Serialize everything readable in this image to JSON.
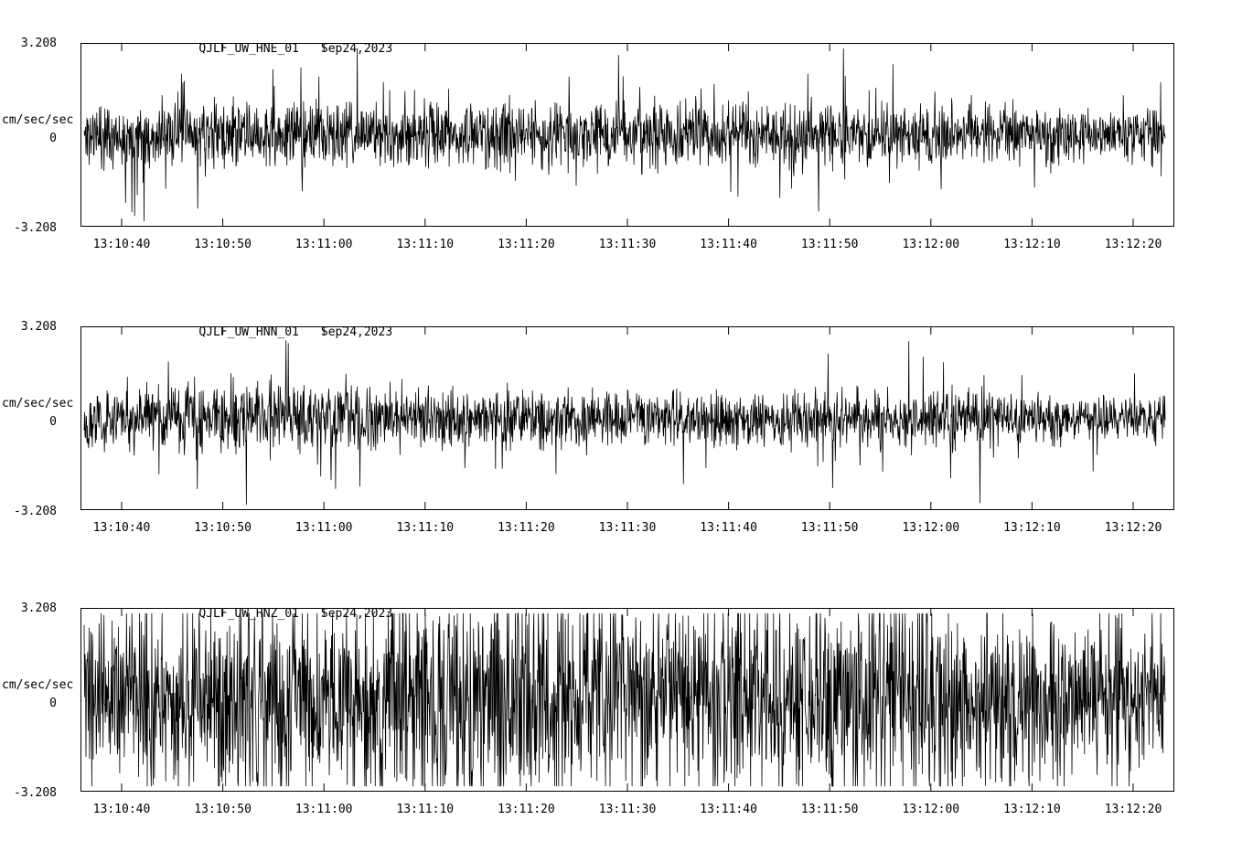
{
  "chart_data": [
    {
      "type": "line",
      "title": "QJLF_UW_HNE_01",
      "date": "Sep24,2023",
      "ylabel": "cm/sec/sec",
      "ymax_label": "3.208",
      "yzero_label": "0",
      "ymin_label": "-3.208",
      "ylim": [
        -3.208,
        3.208
      ],
      "xlabel": "",
      "x_ticks": [
        "13:10:40",
        "13:10:50",
        "13:11:00",
        "13:11:10",
        "13:11:20",
        "13:11:30",
        "13:11:40",
        "13:11:50",
        "13:12:00",
        "13:12:10",
        "13:12:20"
      ],
      "description": "continuous ground-acceleration noise trace, roughly stationary amplitude about +/-1.0 cm/sec/sec peaks around zero",
      "layout": {
        "first_tick_x": 45,
        "tick_spacing": 110.6,
        "grid": false,
        "legend": false
      },
      "gen": {
        "seed": 11,
        "points": 2400,
        "gain": 1.0,
        "spike_prob": 0.07,
        "envelope": [
          0.5,
          0.52,
          0.5,
          0.55,
          0.5,
          0.52,
          0.55,
          0.5,
          0.5,
          0.52,
          0.46,
          0.44
        ]
      }
    },
    {
      "type": "line",
      "title": "QJLF_UW_HNN_01",
      "date": "Sep24,2023",
      "ylabel": "cm/sec/sec",
      "ymax_label": "3.208",
      "yzero_label": "0",
      "ymin_label": "-3.208",
      "ylim": [
        -3.208,
        3.208
      ],
      "xlabel": "",
      "x_ticks": [
        "13:10:40",
        "13:10:50",
        "13:11:00",
        "13:11:10",
        "13:11:20",
        "13:11:30",
        "13:11:40",
        "13:11:50",
        "13:12:00",
        "13:12:10",
        "13:12:20"
      ],
      "description": "continuous ground-acceleration noise trace, slightly smaller amplitude than HNE, peaks about +/-0.9 cm/sec/sec, tapering after 13:12:00",
      "layout": {
        "first_tick_x": 45,
        "tick_spacing": 110.6,
        "grid": false,
        "legend": false
      },
      "gen": {
        "seed": 22,
        "points": 2400,
        "gain": 0.9,
        "spike_prob": 0.06,
        "envelope": [
          0.55,
          0.6,
          0.62,
          0.55,
          0.52,
          0.5,
          0.52,
          0.5,
          0.52,
          0.5,
          0.42,
          0.4
        ]
      }
    },
    {
      "type": "line",
      "title": "QJLF_UW_HNZ_01",
      "date": "Sep24,2023",
      "ylabel": "cm/sec/sec",
      "ymax_label": "3.208",
      "yzero_label": "0",
      "ymin_label": "-3.208",
      "ylim": [
        -3.208,
        3.208
      ],
      "xlabel": "",
      "x_ticks": [
        "13:10:40",
        "13:10:50",
        "13:11:00",
        "13:11:10",
        "13:11:20",
        "13:11:30",
        "13:11:40",
        "13:11:50",
        "13:12:00",
        "13:12:10",
        "13:12:20"
      ],
      "description": "vertical-component trace with much larger amplitude, dense band near +/-1.8 cm/sec/sec, strongest burst near 13:11:20 reaching about +/-3.0, decaying after 13:12:00",
      "layout": {
        "first_tick_x": 45,
        "tick_spacing": 110.6,
        "grid": false,
        "legend": false
      },
      "gen": {
        "seed": 33,
        "points": 2400,
        "gain": 1.9,
        "spike_prob": 0.13,
        "envelope": [
          0.7,
          0.75,
          0.78,
          0.8,
          0.95,
          0.85,
          0.8,
          0.78,
          0.85,
          0.7,
          0.6,
          0.55
        ]
      }
    }
  ],
  "colors": {
    "trace": "#000000",
    "axis": "#000000",
    "background": "#ffffff"
  }
}
